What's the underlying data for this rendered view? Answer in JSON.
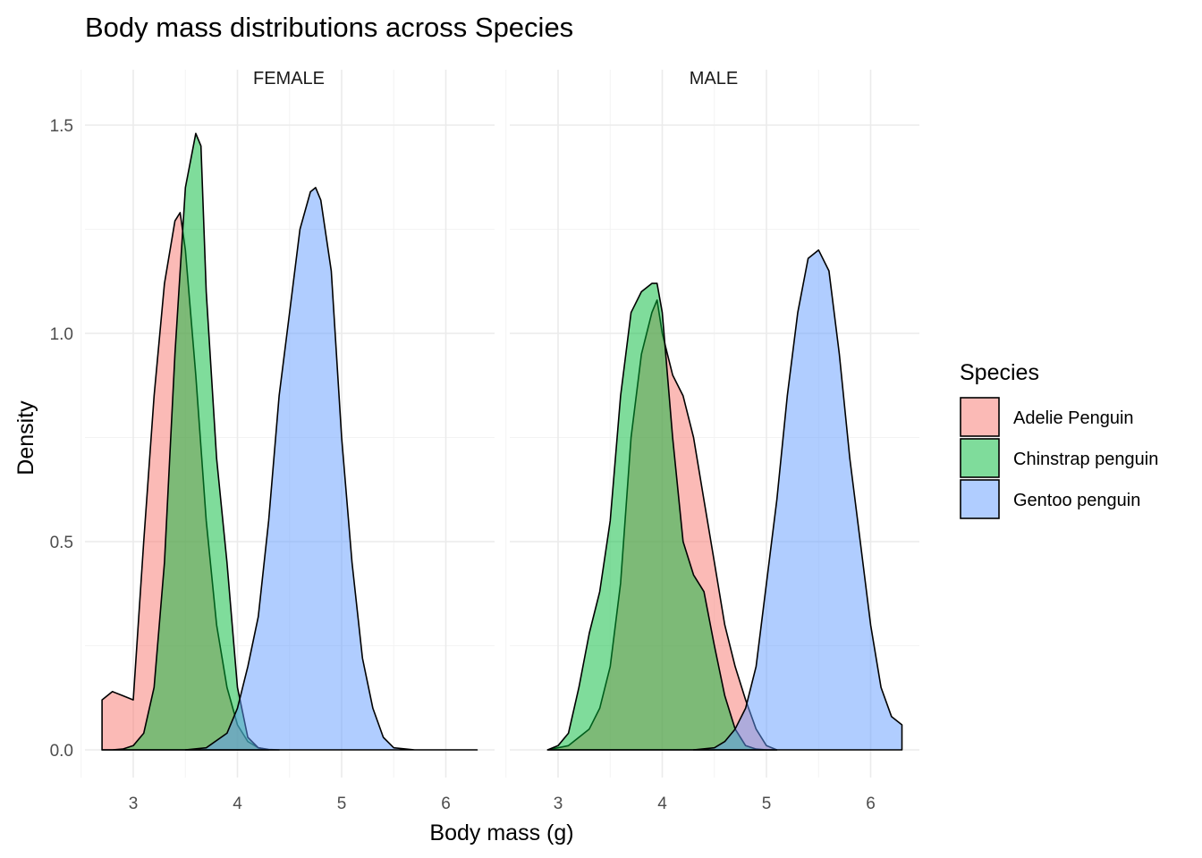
{
  "chart_data": {
    "type": "area",
    "title": "Body mass distributions across Species",
    "xlabel": "Body mass (g)",
    "ylabel": "Density",
    "xlim": [
      2.7,
      6.3
    ],
    "ylim": [
      0,
      1.55
    ],
    "xticks": [
      3,
      4,
      5,
      6
    ],
    "xtick_labels": [
      "3",
      "4",
      "5",
      "6"
    ],
    "yticks": [
      0,
      0.5,
      1.0,
      1.5
    ],
    "ytick_labels": [
      "0.0",
      "0.5",
      "1.0",
      "1.5"
    ],
    "grid": true,
    "legend": {
      "title": "Species",
      "placement": "right",
      "entries": [
        "Adelie Penguin",
        "Chinstrap penguin",
        "Gentoo penguin"
      ]
    },
    "colors": {
      "Adelie Penguin": "#F8766D",
      "Chinstrap penguin": "#00BA38",
      "Gentoo penguin": "#619CFF"
    },
    "facets": [
      {
        "label": "FEMALE",
        "series": [
          {
            "name": "Adelie Penguin",
            "color": "#F8766D",
            "x": [
              2.7,
              2.8,
              2.9,
              3.0,
              3.1,
              3.2,
              3.3,
              3.4,
              3.45,
              3.5,
              3.6,
              3.7,
              3.8,
              3.9,
              4.0,
              4.1,
              4.2,
              4.3,
              4.4
            ],
            "y": [
              0.12,
              0.14,
              0.13,
              0.12,
              0.5,
              0.85,
              1.12,
              1.27,
              1.29,
              1.2,
              0.9,
              0.55,
              0.3,
              0.15,
              0.06,
              0.02,
              0.005,
              0.001,
              0.0
            ]
          },
          {
            "name": "Chinstrap penguin",
            "color": "#00BA38",
            "x": [
              2.7,
              2.8,
              2.9,
              3.0,
              3.1,
              3.2,
              3.3,
              3.4,
              3.5,
              3.6,
              3.65,
              3.7,
              3.8,
              3.9,
              4.0,
              4.1,
              4.2,
              4.3
            ],
            "y": [
              0.0,
              0.0,
              0.002,
              0.01,
              0.04,
              0.15,
              0.45,
              0.95,
              1.35,
              1.48,
              1.45,
              1.1,
              0.7,
              0.45,
              0.15,
              0.03,
              0.005,
              0.0
            ]
          },
          {
            "name": "Gentoo penguin",
            "color": "#619CFF",
            "x": [
              3.5,
              3.7,
              3.9,
              4.0,
              4.1,
              4.2,
              4.3,
              4.4,
              4.5,
              4.6,
              4.7,
              4.75,
              4.8,
              4.9,
              5.0,
              5.1,
              5.2,
              5.3,
              5.4,
              5.5,
              5.7,
              6.0,
              6.3
            ],
            "y": [
              0.0,
              0.005,
              0.04,
              0.1,
              0.2,
              0.32,
              0.55,
              0.85,
              1.05,
              1.25,
              1.34,
              1.35,
              1.32,
              1.15,
              0.75,
              0.45,
              0.22,
              0.1,
              0.03,
              0.005,
              0.0,
              0.0,
              0.0
            ]
          }
        ]
      },
      {
        "label": "MALE",
        "series": [
          {
            "name": "Adelie Penguin",
            "color": "#F8766D",
            "x": [
              2.9,
              3.1,
              3.3,
              3.4,
              3.5,
              3.6,
              3.7,
              3.8,
              3.9,
              3.95,
              4.0,
              4.1,
              4.2,
              4.3,
              4.4,
              4.5,
              4.6,
              4.7,
              4.8,
              4.9,
              5.0,
              5.1
            ],
            "y": [
              0.0,
              0.01,
              0.05,
              0.1,
              0.2,
              0.4,
              0.75,
              0.95,
              1.05,
              1.08,
              1.0,
              0.9,
              0.85,
              0.75,
              0.6,
              0.45,
              0.3,
              0.2,
              0.12,
              0.05,
              0.01,
              0.0
            ]
          },
          {
            "name": "Chinstrap penguin",
            "color": "#00BA38",
            "x": [
              2.9,
              3.0,
              3.1,
              3.2,
              3.3,
              3.4,
              3.5,
              3.6,
              3.7,
              3.8,
              3.9,
              3.95,
              4.0,
              4.1,
              4.2,
              4.3,
              4.4,
              4.5,
              4.6,
              4.7,
              4.8,
              4.9,
              5.0,
              5.1
            ],
            "y": [
              0.0,
              0.01,
              0.04,
              0.15,
              0.28,
              0.38,
              0.55,
              0.85,
              1.05,
              1.1,
              1.12,
              1.12,
              1.05,
              0.75,
              0.5,
              0.42,
              0.38,
              0.25,
              0.13,
              0.05,
              0.01,
              0.002,
              0.0,
              0.0
            ]
          },
          {
            "name": "Gentoo penguin",
            "color": "#619CFF",
            "x": [
              4.3,
              4.5,
              4.6,
              4.7,
              4.8,
              4.9,
              5.0,
              5.1,
              5.2,
              5.3,
              5.4,
              5.5,
              5.6,
              5.7,
              5.8,
              5.9,
              6.0,
              6.1,
              6.2,
              6.3
            ],
            "y": [
              0.0,
              0.005,
              0.02,
              0.05,
              0.1,
              0.2,
              0.4,
              0.6,
              0.85,
              1.05,
              1.18,
              1.2,
              1.15,
              0.95,
              0.7,
              0.5,
              0.3,
              0.15,
              0.08,
              0.06
            ]
          }
        ]
      }
    ]
  }
}
